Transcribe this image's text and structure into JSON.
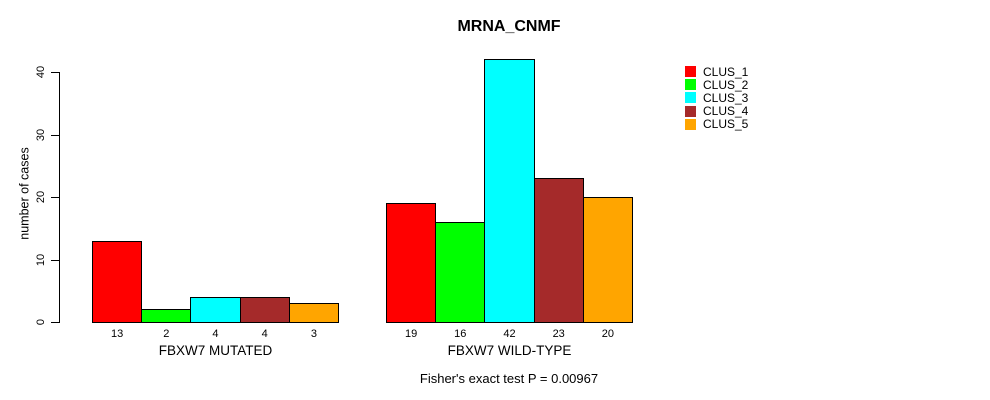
{
  "chart_data": {
    "type": "bar",
    "title": "MRNA_CNMF",
    "ylabel": "number of cases",
    "xlabel": "",
    "ylim": [
      0,
      40
    ],
    "yticks": [
      0,
      10,
      20,
      30,
      40
    ],
    "grid": false,
    "legend_position": "right",
    "categories": [
      "FBXW7 MUTATED",
      "FBXW7 WILD-TYPE"
    ],
    "series": [
      {
        "name": "CLUS_1",
        "color": "#FF0000",
        "values": [
          13,
          19
        ]
      },
      {
        "name": "CLUS_2",
        "color": "#00FF00",
        "values": [
          2,
          16
        ]
      },
      {
        "name": "CLUS_3",
        "color": "#00FFFF",
        "values": [
          4,
          42
        ]
      },
      {
        "name": "CLUS_4",
        "color": "#A52A2A",
        "values": [
          4,
          23
        ]
      },
      {
        "name": "CLUS_5",
        "color": "#FFA500",
        "values": [
          3,
          20
        ]
      }
    ],
    "bar_value_labels": {
      "FBXW7 MUTATED": [
        "13",
        "2",
        "4",
        "4",
        "3"
      ],
      "FBXW7 WILD-TYPE": [
        "19",
        "16",
        "42",
        "23",
        "20"
      ]
    },
    "annotation": "Fisher's exact test P = 0.00967"
  }
}
